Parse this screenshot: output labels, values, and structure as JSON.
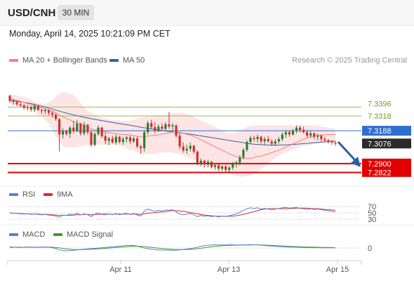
{
  "header": {
    "symbol": "USD/CNH",
    "interval": "30 MIN",
    "datetime": "Monday, April 14, 2025 10:21:09 PM CET"
  },
  "legend": {
    "ma20_bb": "MA 20 + Bollinger Bands",
    "ma50": "MA 50",
    "credit": "Research © 2025 Trading Central",
    "rsi": "RSI",
    "rsi_ma": "9MA",
    "macd": "MACD",
    "macd_signal": "MACD Signal"
  },
  "colors": {
    "up": "#2e7d32",
    "down": "#d32f2f",
    "ma20": "#f08080",
    "ma50": "#3a5fa0",
    "bb_fill": "#fde0e0",
    "resistance": "#8bc34a",
    "support": "#e00000",
    "current_price": "#2f6fd1",
    "last_price": "#2b2b2b",
    "arrow": "#2b5fa0"
  },
  "levels": {
    "resistance": [
      "7.3396",
      "7.3318"
    ],
    "current": "7.3188",
    "last": "7.3076",
    "support": [
      "7.2900",
      "7.2822"
    ]
  },
  "x_axis": {
    "labels": [
      "Apr 11",
      "Apr 13",
      "Apr 15"
    ]
  },
  "rsi_axis": [
    "70",
    "50",
    "30"
  ],
  "macd_axis": [
    "0"
  ],
  "chart_data": {
    "type": "candlestick",
    "interval": "30 MIN",
    "y_range": [
      7.272,
      7.375
    ],
    "levels": {
      "resistance": [
        7.3396,
        7.3318
      ],
      "current": 7.3188,
      "last": 7.3076,
      "support": [
        7.29,
        7.2822
      ]
    },
    "x_ticks": [
      "Apr 11",
      "Apr 13",
      "Apr 15"
    ],
    "candles": [
      [
        7.3495,
        7.3505,
        7.3435,
        7.345
      ],
      [
        7.345,
        7.3465,
        7.3415,
        7.344
      ],
      [
        7.344,
        7.3455,
        7.3405,
        7.342
      ],
      [
        7.342,
        7.3445,
        7.3395,
        7.341
      ],
      [
        7.341,
        7.3425,
        7.3375,
        7.339
      ],
      [
        7.339,
        7.3415,
        7.3365,
        7.3395
      ],
      [
        7.3395,
        7.3405,
        7.3355,
        7.3375
      ],
      [
        7.3375,
        7.3425,
        7.3355,
        7.3405
      ],
      [
        7.3405,
        7.3415,
        7.3365,
        7.337
      ],
      [
        7.337,
        7.338,
        7.3335,
        7.336
      ],
      [
        7.336,
        7.3385,
        7.3335,
        7.337
      ],
      [
        7.337,
        7.3375,
        7.3325,
        7.3345
      ],
      [
        7.3345,
        7.336,
        7.3305,
        7.333
      ],
      [
        7.333,
        7.334,
        7.3275,
        7.329
      ],
      [
        7.329,
        7.33,
        7.3005,
        7.3155
      ],
      [
        7.3155,
        7.321,
        7.312,
        7.3185
      ],
      [
        7.3185,
        7.3195,
        7.3145,
        7.316
      ],
      [
        7.316,
        7.323,
        7.3125,
        7.3215
      ],
      [
        7.3215,
        7.3275,
        7.3165,
        7.3185
      ],
      [
        7.3185,
        7.3285,
        7.3175,
        7.325
      ],
      [
        7.325,
        7.326,
        7.3145,
        7.3165
      ],
      [
        7.3165,
        7.3265,
        7.3145,
        7.324
      ],
      [
        7.324,
        7.325,
        7.3155,
        7.3175
      ],
      [
        7.3175,
        7.3185,
        7.3045,
        7.3065
      ],
      [
        7.3065,
        7.3175,
        7.305,
        7.316
      ],
      [
        7.316,
        7.3235,
        7.3145,
        7.3215
      ],
      [
        7.3215,
        7.3225,
        7.3125,
        7.314
      ],
      [
        7.314,
        7.3175,
        7.307,
        7.31
      ],
      [
        7.31,
        7.3135,
        7.306,
        7.312
      ],
      [
        7.312,
        7.3145,
        7.3075,
        7.3085
      ],
      [
        7.3085,
        7.3155,
        7.3065,
        7.3135
      ],
      [
        7.3135,
        7.3145,
        7.3075,
        7.309
      ],
      [
        7.309,
        7.3135,
        7.3065,
        7.3115
      ],
      [
        7.3115,
        7.3145,
        7.3085,
        7.313
      ],
      [
        7.313,
        7.3145,
        7.3075,
        7.3095
      ],
      [
        7.3095,
        7.3135,
        7.308,
        7.312
      ],
      [
        7.312,
        7.3135,
        7.3035,
        7.305
      ],
      [
        7.305,
        7.3065,
        7.2985,
        7.3035
      ],
      [
        7.3035,
        7.3195,
        7.3005,
        7.3175
      ],
      [
        7.3175,
        7.3275,
        7.3155,
        7.3255
      ],
      [
        7.3255,
        7.3285,
        7.3205,
        7.322
      ],
      [
        7.322,
        7.3265,
        7.3165,
        7.319
      ],
      [
        7.319,
        7.3245,
        7.3175,
        7.3225
      ],
      [
        7.3225,
        7.3255,
        7.3195,
        7.3205
      ],
      [
        7.3205,
        7.3265,
        7.319,
        7.3245
      ],
      [
        7.3245,
        7.3355,
        7.3205,
        7.3225
      ],
      [
        7.3225,
        7.3255,
        7.3185,
        7.3235
      ],
      [
        7.3235,
        7.3245,
        7.3125,
        7.3145
      ],
      [
        7.3145,
        7.3165,
        7.3025,
        7.305
      ],
      [
        7.305,
        7.3085,
        7.2995,
        7.3015
      ],
      [
        7.3015,
        7.3065,
        7.2985,
        7.303
      ],
      [
        7.303,
        7.3085,
        7.3005,
        7.3055
      ],
      [
        7.3055,
        7.3065,
        7.2985,
        7.3005
      ],
      [
        7.3005,
        7.3015,
        7.2885,
        7.2905
      ],
      [
        7.2905,
        7.2945,
        7.2875,
        7.2925
      ],
      [
        7.2925,
        7.2935,
        7.2865,
        7.289
      ],
      [
        7.289,
        7.2935,
        7.2865,
        7.2915
      ],
      [
        7.2915,
        7.2925,
        7.2855,
        7.287
      ],
      [
        7.287,
        7.2905,
        7.2845,
        7.2885
      ],
      [
        7.2885,
        7.2895,
        7.2835,
        7.2855
      ],
      [
        7.2855,
        7.2885,
        7.2835,
        7.2875
      ],
      [
        7.2875,
        7.2885,
        7.2825,
        7.2845
      ],
      [
        7.2845,
        7.2875,
        7.2825,
        7.2865
      ],
      [
        7.2865,
        7.2915,
        7.2845,
        7.2895
      ],
      [
        7.2895,
        7.2925,
        7.2865,
        7.291
      ],
      [
        7.291,
        7.2975,
        7.2885,
        7.2955
      ],
      [
        7.2955,
        7.3035,
        7.2935,
        7.302
      ],
      [
        7.302,
        7.3105,
        7.3005,
        7.309
      ],
      [
        7.309,
        7.3145,
        7.307,
        7.3125
      ],
      [
        7.3125,
        7.3145,
        7.3095,
        7.3115
      ],
      [
        7.3115,
        7.3155,
        7.3085,
        7.3135
      ],
      [
        7.3135,
        7.3145,
        7.3075,
        7.3095
      ],
      [
        7.3095,
        7.3135,
        7.3065,
        7.3115
      ],
      [
        7.3115,
        7.3145,
        7.3085,
        7.3095
      ],
      [
        7.3095,
        7.3115,
        7.3055,
        7.3075
      ],
      [
        7.3075,
        7.3115,
        7.3055,
        7.3095
      ],
      [
        7.3095,
        7.3135,
        7.3075,
        7.3115
      ],
      [
        7.3115,
        7.3175,
        7.3095,
        7.3155
      ],
      [
        7.3155,
        7.3195,
        7.3125,
        7.3175
      ],
      [
        7.3175,
        7.3195,
        7.3135,
        7.3155
      ],
      [
        7.3155,
        7.3205,
        7.3145,
        7.3185
      ],
      [
        7.3185,
        7.3235,
        7.3165,
        7.3215
      ],
      [
        7.3215,
        7.3235,
        7.3175,
        7.3195
      ],
      [
        7.3195,
        7.3225,
        7.3165,
        7.3175
      ],
      [
        7.3175,
        7.3195,
        7.3125,
        7.3145
      ],
      [
        7.3145,
        7.3185,
        7.3125,
        7.3165
      ],
      [
        7.3165,
        7.3175,
        7.3115,
        7.3135
      ],
      [
        7.3135,
        7.3165,
        7.3105,
        7.3145
      ],
      [
        7.3145,
        7.3155,
        7.3095,
        7.3115
      ],
      [
        7.3115,
        7.3135,
        7.3085,
        7.3105
      ],
      [
        7.3105,
        7.3115,
        7.3075,
        7.3095
      ],
      [
        7.3095,
        7.3105,
        7.3065,
        7.3085
      ],
      [
        7.3085,
        7.3095,
        7.3055,
        7.3076
      ]
    ],
    "ma20": [
      7.347,
      7.3462,
      7.3454,
      7.3446,
      7.3436,
      7.3427,
      7.3417,
      7.3408,
      7.3399,
      7.3389,
      7.3379,
      7.3369,
      7.3359,
      7.3346,
      7.3326,
      7.331,
      7.3296,
      7.3283,
      7.3269,
      7.3259,
      7.3244,
      7.3234,
      7.322,
      7.3205,
      7.3195,
      7.3192,
      7.3185,
      7.3178,
      7.3172,
      7.3166,
      7.3163,
      7.3158,
      7.3155,
      7.3155,
      7.3151,
      7.3145,
      7.3139,
      7.3133,
      7.3134,
      7.3142,
      7.3145,
      7.3148,
      7.3152,
      7.3158,
      7.3165,
      7.3168,
      7.3175,
      7.3177,
      7.3174,
      7.3166,
      7.3157,
      7.315,
      7.3139,
      7.3123,
      7.3108,
      7.3093,
      7.3078,
      7.3062,
      7.3047,
      7.3032,
      7.3017,
      7.3001,
      7.2987,
      7.2973,
      7.2962,
      7.2953,
      7.2948,
      7.2946,
      7.2946,
      7.2954,
      7.2961,
      7.2967,
      7.2976,
      7.2985,
      7.2996,
      7.3007,
      7.3018,
      7.3031,
      7.3045,
      7.3058,
      7.3072,
      7.3087,
      7.3101,
      7.3114,
      7.3125,
      7.3134,
      7.3141,
      7.3146,
      7.315,
      7.3153,
      7.3155,
      7.3155,
      7.3154
    ],
    "ma50": [
      7.3456,
      7.3452,
      7.3447,
      7.3442,
      7.3437,
      7.3432,
      7.3426,
      7.3419,
      7.3412,
      7.3404,
      7.3396,
      7.3387,
      7.3378,
      7.3369,
      7.336,
      7.3351,
      7.3343,
      7.3335,
      7.3327,
      7.332,
      7.3313,
      7.3306,
      7.33,
      7.3294,
      7.3288,
      7.3283,
      7.3277,
      7.3272,
      7.3266,
      7.3261,
      7.3256,
      7.3251,
      7.3246,
      7.3241,
      7.3236,
      7.323,
      7.3225,
      7.3219,
      7.3214,
      7.3209,
      7.3204,
      7.3199,
      7.3195,
      7.319,
      7.3186,
      7.3182,
      7.3178,
      7.3174,
      7.317,
      7.3166,
      7.3162,
      7.3158,
      7.3153,
      7.3148,
      7.3143,
      7.3138,
      7.3133,
      7.3128,
      7.3123,
      7.3118,
      7.3113,
      7.3108,
      7.3103,
      7.3098,
      7.3093,
      7.3088,
      7.3083,
      7.3078,
      7.3073,
      7.307,
      7.3068,
      7.3066,
      7.3064,
      7.3063,
      7.3062,
      7.3062,
      7.3062,
      7.3063,
      7.3064,
      7.3066,
      7.3068,
      7.307,
      7.3072,
      7.3075,
      7.3077,
      7.308,
      7.3083,
      7.3085,
      7.3088,
      7.309,
      7.3093,
      7.3095,
      7.3097
    ],
    "bb_upper": [
      7.351,
      7.3505,
      7.35,
      7.349,
      7.3485,
      7.3475,
      7.346,
      7.3445,
      7.343,
      7.3425,
      7.3425,
      7.3435,
      7.3455,
      7.349,
      7.3515,
      7.3525,
      7.3525,
      7.3515,
      7.35,
      7.347,
      7.343,
      7.339,
      7.3365,
      7.3345,
      7.333,
      7.3315,
      7.3305,
      7.3295,
      7.329,
      7.3285,
      7.328,
      7.328,
      7.3275,
      7.3275,
      7.3275,
      7.3285,
      7.3295,
      7.3305,
      7.331,
      7.3315,
      7.332,
      7.3325,
      7.3325,
      7.3325,
      7.3325,
      7.3335,
      7.3345,
      7.3345,
      7.3345,
      7.334,
      7.3335,
      7.3325,
      7.331,
      7.3295,
      7.328,
      7.3265,
      7.325,
      7.3235,
      7.322,
      7.3205,
      7.319,
      7.3175,
      7.3165,
      7.3165,
      7.3175,
      7.319,
      7.3205,
      7.322,
      7.323,
      7.3235,
      7.3235,
      7.3235,
      7.3235,
      7.3235,
      7.3235,
      7.3235,
      7.3235,
      7.3235,
      7.3235,
      7.3235,
      7.3235,
      7.3235,
      7.3235,
      7.3235,
      7.3235,
      7.3235,
      7.3235,
      7.323,
      7.3225,
      7.322,
      7.3215,
      7.321,
      7.3205
    ],
    "bb_lower": [
      7.343,
      7.342,
      7.341,
      7.34,
      7.339,
      7.338,
      7.3365,
      7.335,
      7.333,
      7.331,
      7.328,
      7.325,
      7.3195,
      7.314,
      7.3085,
      7.305,
      7.304,
      7.304,
      7.304,
      7.3045,
      7.305,
      7.3055,
      7.306,
      7.3065,
      7.3065,
      7.3065,
      7.3065,
      7.3065,
      7.3065,
      7.3065,
      7.3065,
      7.3055,
      7.3045,
      7.303,
      7.302,
      7.301,
      7.3,
      7.299,
      7.2985,
      7.2985,
      7.2985,
      7.2985,
      7.299,
      7.2995,
      7.3,
      7.3,
      7.2995,
      7.299,
      7.2985,
      7.2975,
      7.296,
      7.2945,
      7.293,
      7.2915,
      7.2905,
      7.2895,
      7.2885,
      7.2875,
      7.2865,
      7.2855,
      7.2845,
      7.283,
      7.2815,
      7.28,
      7.279,
      7.2785,
      7.2785,
      7.279,
      7.2795,
      7.281,
      7.283,
      7.2855,
      7.288,
      7.2905,
      7.293,
      7.295,
      7.297,
      7.2985,
      7.3,
      7.301,
      7.302,
      7.3035,
      7.3045,
      7.3055,
      7.306,
      7.3065,
      7.307,
      7.3075,
      7.308,
      7.3085,
      7.3085,
      7.309,
      7.309
    ],
    "rsi": [
      50,
      49,
      48,
      47,
      46,
      47,
      45,
      47,
      45,
      44,
      45,
      43,
      42,
      40,
      36,
      43,
      42,
      46,
      44,
      49,
      43,
      47,
      44,
      38,
      46,
      50,
      45,
      44,
      47,
      44,
      48,
      44,
      47,
      48,
      45,
      48,
      43,
      40,
      56,
      62,
      58,
      55,
      58,
      56,
      59,
      58,
      60,
      53,
      46,
      44,
      46,
      48,
      44,
      38,
      42,
      39,
      41,
      38,
      40,
      37,
      40,
      38,
      41,
      44,
      47,
      52,
      58,
      63,
      66,
      64,
      66,
      62,
      64,
      62,
      60,
      62,
      64,
      66,
      67,
      65,
      66,
      67,
      64,
      63,
      61,
      63,
      61,
      62,
      60,
      58,
      57,
      55,
      54
    ],
    "rsi_ma": [
      49,
      49,
      48,
      48,
      47,
      47,
      46,
      46,
      46,
      45,
      45,
      45,
      44,
      43,
      42,
      42,
      42,
      42,
      43,
      44,
      44,
      45,
      45,
      44,
      45,
      45,
      46,
      46,
      46,
      45,
      46,
      46,
      46,
      46,
      46,
      46,
      46,
      45,
      47,
      49,
      50,
      51,
      52,
      53,
      54,
      56,
      57,
      57,
      56,
      55,
      53,
      51,
      49,
      47,
      45,
      43,
      42,
      41,
      40,
      39,
      39,
      39,
      39,
      40,
      41,
      43,
      45,
      48,
      51,
      54,
      57,
      60,
      62,
      63,
      63,
      63,
      63,
      63,
      63,
      64,
      64,
      65,
      65,
      65,
      65,
      64,
      63,
      63,
      62,
      61,
      60,
      59,
      58
    ],
    "macd": [
      0.3,
      0.2,
      0.15,
      0.12,
      0.18,
      0.25,
      0.2,
      0.18,
      0.15,
      0.22,
      0.25,
      0.2,
      0.05,
      -0.15,
      -0.45,
      -0.6,
      -0.65,
      -0.62,
      -0.55,
      -0.45,
      -0.38,
      -0.3,
      -0.22,
      -0.15,
      -0.08,
      -0.02,
      0.05,
      0.12,
      0.22,
      0.3,
      0.38,
      0.45,
      0.52,
      0.58,
      0.62,
      0.6,
      0.45,
      0.2,
      0,
      -0.15,
      -0.28,
      -0.38,
      -0.45,
      -0.5,
      -0.52,
      -0.55,
      -0.55,
      -0.52,
      -0.45,
      -0.35,
      -0.25,
      -0.15,
      0,
      0.2,
      0.4,
      0.55,
      0.65,
      0.72,
      0.75,
      0.72,
      0.7,
      0.72,
      0.75,
      0.75,
      0.72,
      0.7,
      0.72,
      0.75,
      0.78,
      0.75,
      0.72,
      0.65,
      0.58,
      0.5,
      0.45,
      0.4,
      0.35,
      0.3,
      0.25,
      0.22,
      0.2,
      0.18,
      0.15,
      0.12,
      0.1,
      0.08,
      0.07,
      0.06,
      0.05,
      0.05,
      0.04,
      0.04,
      0.04
    ],
    "macd_signal": [
      0.15,
      0.17,
      0.18,
      0.18,
      0.18,
      0.2,
      0.2,
      0.2,
      0.19,
      0.2,
      0.21,
      0.21,
      0.18,
      0.12,
      0.02,
      -0.1,
      -0.22,
      -0.32,
      -0.38,
      -0.4,
      -0.4,
      -0.38,
      -0.34,
      -0.3,
      -0.25,
      -0.2,
      -0.14,
      -0.08,
      -0.02,
      0.05,
      0.12,
      0.18,
      0.25,
      0.32,
      0.38,
      0.42,
      0.43,
      0.4,
      0.33,
      0.25,
      0.15,
      0.05,
      -0.05,
      -0.13,
      -0.2,
      -0.27,
      -0.32,
      -0.36,
      -0.38,
      -0.38,
      -0.36,
      -0.32,
      -0.26,
      -0.17,
      -0.06,
      0.06,
      0.18,
      0.29,
      0.39,
      0.47,
      0.53,
      0.58,
      0.62,
      0.65,
      0.67,
      0.68,
      0.69,
      0.7,
      0.72,
      0.73,
      0.73,
      0.71,
      0.69,
      0.65,
      0.61,
      0.57,
      0.52,
      0.48,
      0.43,
      0.39,
      0.35,
      0.32,
      0.29,
      0.26,
      0.23,
      0.2,
      0.18,
      0.16,
      0.14,
      0.12,
      0.11,
      0.1,
      0.09
    ]
  }
}
